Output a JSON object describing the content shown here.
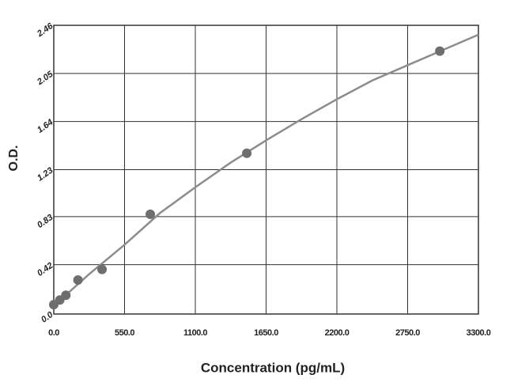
{
  "chart_data": {
    "type": "scatter",
    "x_label": "Concentration (pg/mL)",
    "y_label": "O.D.",
    "series": [
      {
        "color": "#6e6e6e",
        "x": [
          0,
          47,
          94,
          188,
          375,
          750,
          1500,
          3000
        ],
        "values": [
          0.08,
          0.12,
          0.16,
          0.29,
          0.38,
          0.85,
          1.37,
          2.24
        ]
      }
    ],
    "fit": {
      "type": "line",
      "color": "#8c8c8c",
      "x": [
        0,
        275,
        550,
        825,
        1100,
        1375,
        1650,
        1925,
        2200,
        2475,
        2750,
        3025,
        3300
      ],
      "values": [
        0.07,
        0.34,
        0.59,
        0.86,
        1.08,
        1.29,
        1.48,
        1.66,
        1.83,
        1.99,
        2.12,
        2.25,
        2.38
      ]
    },
    "xlim": [
      0,
      3300
    ],
    "ylim": [
      0,
      2.46
    ],
    "xticks": [
      {
        "value": 0,
        "label": "0.0"
      },
      {
        "value": 550,
        "label": "550.0"
      },
      {
        "value": 1100,
        "label": "1100.0"
      },
      {
        "value": 1650,
        "label": "1650.0"
      },
      {
        "value": 2200,
        "label": "2200.0"
      },
      {
        "value": 2750,
        "label": "2750.0"
      },
      {
        "value": 3300,
        "label": "3300.0"
      }
    ],
    "yticks": [
      {
        "value": 0,
        "label": "0.0"
      },
      0.42,
      0.83,
      1.23,
      1.64,
      2.05,
      2.46
    ],
    "grid": true
  }
}
